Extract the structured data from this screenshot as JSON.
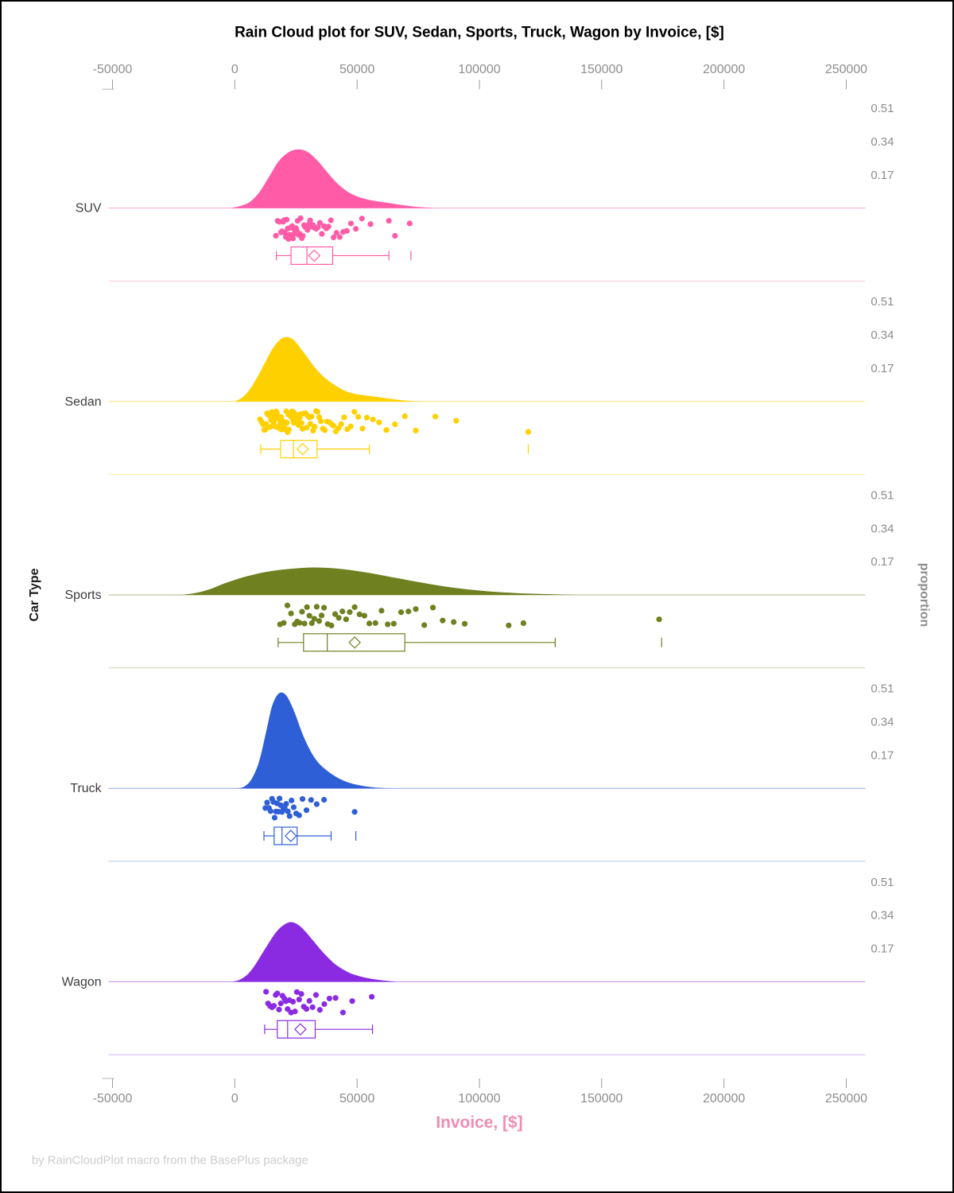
{
  "figure": {
    "title": "Rain Cloud plot for SUV, Sedan, Sports, Truck, Wagon by Invoice, [$]",
    "xlabel": "Invoice, [$]",
    "xlabel_color": "#f08cb4",
    "ylabel": "Car Type",
    "right_label": "proportion",
    "footnote": "by RainCloudPlot macro from the BasePlus package"
  },
  "chart_data": {
    "type": "raincloud",
    "x_axis": {
      "min": -50000,
      "max": 250000,
      "ticks": [
        -50000,
        0,
        50000,
        100000,
        150000,
        200000,
        250000
      ],
      "label": "Invoice, [$]"
    },
    "proportion_ticks": [
      0.51,
      0.34,
      0.17
    ],
    "legend_position": "none",
    "categories": [
      {
        "label": "SUV",
        "color": "#ff5ba7",
        "density": [
          [
            -2000,
            0
          ],
          [
            2000,
            0.01
          ],
          [
            6000,
            0.03
          ],
          [
            10000,
            0.08
          ],
          [
            14000,
            0.16
          ],
          [
            18000,
            0.24
          ],
          [
            22000,
            0.285
          ],
          [
            26000,
            0.3
          ],
          [
            30000,
            0.285
          ],
          [
            34000,
            0.24
          ],
          [
            38000,
            0.18
          ],
          [
            42000,
            0.125
          ],
          [
            46000,
            0.085
          ],
          [
            50000,
            0.06
          ],
          [
            54000,
            0.045
          ],
          [
            58000,
            0.035
          ],
          [
            62000,
            0.028
          ],
          [
            66000,
            0.02
          ],
          [
            70000,
            0.013
          ],
          [
            74000,
            0.007
          ],
          [
            78000,
            0.003
          ],
          [
            82000,
            0
          ]
        ],
        "points": [
          16800,
          17500,
          18200,
          18900,
          19300,
          19800,
          20100,
          20400,
          20900,
          21200,
          21600,
          22000,
          22300,
          22700,
          23100,
          23400,
          23800,
          24200,
          24600,
          25000,
          25300,
          25700,
          26100,
          26500,
          26900,
          27400,
          27800,
          28300,
          28800,
          29200,
          29700,
          30200,
          30800,
          31400,
          32000,
          32600,
          33300,
          34000,
          34800,
          35600,
          36500,
          37400,
          38300,
          39300,
          40400,
          41600,
          42900,
          44300,
          45800,
          47500,
          49500,
          52000,
          55500,
          63000,
          65500,
          71500
        ],
        "box": {
          "low": 17000,
          "q1": 23000,
          "median": 29500,
          "q3": 40000,
          "high": 63000,
          "mean": 32500,
          "outliers": [
            72000
          ]
        }
      },
      {
        "label": "Sedan",
        "color": "#ffd000",
        "density": [
          [
            0,
            0
          ],
          [
            3000,
            0.02
          ],
          [
            6000,
            0.06
          ],
          [
            9000,
            0.12
          ],
          [
            12000,
            0.19
          ],
          [
            15000,
            0.26
          ],
          [
            18000,
            0.31
          ],
          [
            21000,
            0.33
          ],
          [
            24000,
            0.315
          ],
          [
            27000,
            0.27
          ],
          [
            30000,
            0.22
          ],
          [
            33000,
            0.17
          ],
          [
            36000,
            0.13
          ],
          [
            39000,
            0.1
          ],
          [
            42000,
            0.075
          ],
          [
            45000,
            0.055
          ],
          [
            48000,
            0.042
          ],
          [
            51000,
            0.035
          ],
          [
            54000,
            0.03
          ],
          [
            57000,
            0.025
          ],
          [
            60000,
            0.02
          ],
          [
            63000,
            0.015
          ],
          [
            66000,
            0.01
          ],
          [
            69000,
            0.006
          ],
          [
            72000,
            0.003
          ],
          [
            76000,
            0
          ]
        ],
        "points": [
          10300,
          11000,
          11500,
          12000,
          12400,
          12800,
          13200,
          13500,
          13900,
          14200,
          14500,
          14800,
          15100,
          15400,
          15700,
          16000,
          16300,
          16600,
          16900,
          17200,
          17500,
          17800,
          18000,
          18300,
          18600,
          18900,
          19100,
          19400,
          19700,
          20000,
          20200,
          20500,
          20800,
          21000,
          21300,
          21600,
          21900,
          22100,
          22400,
          22700,
          23000,
          23300,
          23600,
          23900,
          24200,
          24500,
          24800,
          25100,
          25400,
          25800,
          26100,
          26500,
          26900,
          27300,
          27700,
          28100,
          28500,
          29000,
          29400,
          29900,
          30400,
          30900,
          31400,
          32000,
          32600,
          33200,
          33800,
          34500,
          35200,
          36000,
          36800,
          37600,
          38500,
          39400,
          40300,
          41300,
          42400,
          43500,
          44700,
          46000,
          47400,
          48900,
          50500,
          52200,
          54000,
          56500,
          59000,
          62000,
          65500,
          69500,
          74000,
          82000,
          90500,
          120000
        ],
        "box": {
          "low": 10600,
          "q1": 18700,
          "median": 24000,
          "q3": 33600,
          "high": 55000,
          "mean": 27800,
          "outliers": [
            120000
          ]
        }
      },
      {
        "label": "Sports",
        "color": "#6e8020",
        "density": [
          [
            -22000,
            0
          ],
          [
            -16000,
            0.01
          ],
          [
            -10000,
            0.03
          ],
          [
            -4000,
            0.06
          ],
          [
            2000,
            0.085
          ],
          [
            8000,
            0.105
          ],
          [
            14000,
            0.12
          ],
          [
            20000,
            0.13
          ],
          [
            26000,
            0.137
          ],
          [
            32000,
            0.14
          ],
          [
            38000,
            0.138
          ],
          [
            44000,
            0.132
          ],
          [
            50000,
            0.122
          ],
          [
            56000,
            0.11
          ],
          [
            62000,
            0.096
          ],
          [
            68000,
            0.082
          ],
          [
            74000,
            0.068
          ],
          [
            80000,
            0.055
          ],
          [
            86000,
            0.043
          ],
          [
            92000,
            0.033
          ],
          [
            98000,
            0.025
          ],
          [
            104000,
            0.018
          ],
          [
            110000,
            0.013
          ],
          [
            116000,
            0.009
          ],
          [
            122000,
            0.006
          ],
          [
            128000,
            0.004
          ],
          [
            134000,
            0.002
          ],
          [
            140000,
            0
          ]
        ],
        "points": [
          18500,
          20000,
          21500,
          23000,
          24500,
          25500,
          26500,
          27500,
          28500,
          29500,
          30500,
          31500,
          32500,
          33500,
          34500,
          35500,
          36500,
          38000,
          39500,
          41000,
          42500,
          44000,
          45500,
          47000,
          49000,
          51000,
          53000,
          55000,
          57500,
          60000,
          62500,
          65000,
          68000,
          71000,
          74000,
          77500,
          81000,
          85000,
          89500,
          94000,
          112000,
          118000,
          173500
        ],
        "box": {
          "low": 17700,
          "q1": 28100,
          "median": 37800,
          "q3": 69500,
          "high": 131000,
          "mean": 49000,
          "outliers": [
            174500
          ]
        }
      },
      {
        "label": "Truck",
        "color": "#2f5fd7",
        "density": [
          [
            1000,
            0
          ],
          [
            4000,
            0.01
          ],
          [
            7000,
            0.05
          ],
          [
            10000,
            0.14
          ],
          [
            13000,
            0.3
          ],
          [
            15000,
            0.41
          ],
          [
            17000,
            0.47
          ],
          [
            19000,
            0.49
          ],
          [
            21000,
            0.475
          ],
          [
            23000,
            0.43
          ],
          [
            25000,
            0.37
          ],
          [
            27000,
            0.3
          ],
          [
            29000,
            0.24
          ],
          [
            31000,
            0.19
          ],
          [
            33000,
            0.15
          ],
          [
            35000,
            0.12
          ],
          [
            38000,
            0.088
          ],
          [
            41000,
            0.062
          ],
          [
            44000,
            0.042
          ],
          [
            47000,
            0.028
          ],
          [
            50000,
            0.018
          ],
          [
            53000,
            0.011
          ],
          [
            56000,
            0.006
          ],
          [
            60000,
            0.002
          ],
          [
            64000,
            0
          ]
        ],
        "points": [
          12500,
          13200,
          14000,
          14600,
          15200,
          15800,
          16300,
          16800,
          17300,
          17800,
          18300,
          18800,
          19300,
          19800,
          20400,
          21000,
          21700,
          22400,
          23200,
          24100,
          25100,
          26300,
          27700,
          29300,
          31200,
          33500,
          36500,
          49000
        ],
        "box": {
          "low": 11900,
          "q1": 16100,
          "median": 19300,
          "q3": 25500,
          "high": 39400,
          "mean": 22900,
          "outliers": [
            49500
          ]
        }
      },
      {
        "label": "Wagon",
        "color": "#8a2be2",
        "density": [
          [
            -1000,
            0
          ],
          [
            2000,
            0.01
          ],
          [
            5000,
            0.035
          ],
          [
            8000,
            0.08
          ],
          [
            11000,
            0.14
          ],
          [
            14000,
            0.2
          ],
          [
            17000,
            0.255
          ],
          [
            20000,
            0.29
          ],
          [
            23000,
            0.305
          ],
          [
            26000,
            0.29
          ],
          [
            29000,
            0.255
          ],
          [
            32000,
            0.21
          ],
          [
            35000,
            0.165
          ],
          [
            38000,
            0.125
          ],
          [
            41000,
            0.09
          ],
          [
            44000,
            0.065
          ],
          [
            47000,
            0.045
          ],
          [
            50000,
            0.032
          ],
          [
            53000,
            0.022
          ],
          [
            56000,
            0.015
          ],
          [
            59000,
            0.009
          ],
          [
            62000,
            0.005
          ],
          [
            66000,
            0
          ]
        ],
        "points": [
          12800,
          13600,
          14400,
          15200,
          16000,
          16700,
          17400,
          18100,
          18800,
          19500,
          20200,
          20900,
          21600,
          22300,
          23000,
          23800,
          24600,
          25400,
          26300,
          27200,
          28200,
          29300,
          30500,
          31800,
          33200,
          34800,
          36600,
          38700,
          41200,
          44200,
          48000,
          56000
        ],
        "box": {
          "low": 12200,
          "q1": 17400,
          "median": 21600,
          "q3": 32900,
          "high": 56300,
          "mean": 26800,
          "outliers": []
        }
      }
    ]
  }
}
